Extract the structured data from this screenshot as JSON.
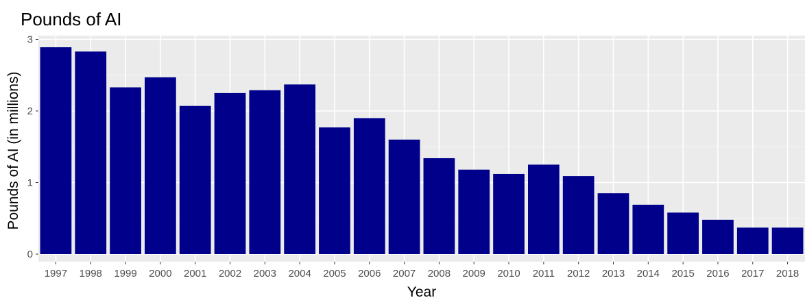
{
  "chart_data": {
    "type": "bar",
    "title": "Pounds of AI",
    "xlabel": "Year",
    "ylabel": "Pounds of AI (in millions)",
    "categories": [
      "1997",
      "1998",
      "1999",
      "2000",
      "2001",
      "2002",
      "2003",
      "2004",
      "2005",
      "2006",
      "2007",
      "2008",
      "2009",
      "2010",
      "2011",
      "2012",
      "2013",
      "2014",
      "2015",
      "2016",
      "2017",
      "2018"
    ],
    "values": [
      2.89,
      2.83,
      2.33,
      2.47,
      2.07,
      2.25,
      2.29,
      2.37,
      1.77,
      1.9,
      1.6,
      1.34,
      1.18,
      1.12,
      1.25,
      1.09,
      0.85,
      0.69,
      0.58,
      0.48,
      0.37,
      0.37
    ],
    "yticks": [
      0,
      1,
      2,
      3
    ],
    "ylim": [
      0,
      3.0
    ],
    "grid": true,
    "legend": "none",
    "colors": {
      "bar": "#00008B",
      "panel_background": "#EBEBEB",
      "grid_major": "#FFFFFF",
      "grid_minor": "#F5F5F5",
      "tick_text": "#4D4D4D",
      "tick_mark": "#333333"
    }
  }
}
